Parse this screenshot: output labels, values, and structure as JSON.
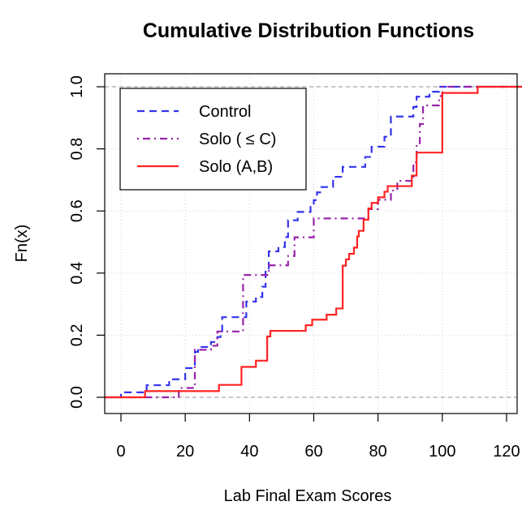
{
  "chart_data": {
    "type": "line",
    "step": true,
    "title": "Cumulative Distribution Functions",
    "xlabel": "Lab Final Exam Scores",
    "ylabel": "Fn(x)",
    "xlim": [
      -5,
      125
    ],
    "ylim": [
      0,
      1
    ],
    "x_ticks": [
      0,
      20,
      40,
      60,
      80,
      100,
      120
    ],
    "y_ticks": [
      0.0,
      0.2,
      0.4,
      0.6,
      0.8,
      1.0
    ],
    "x_tick_labels": [
      "0",
      "20",
      "40",
      "60",
      "80",
      "100",
      "120"
    ],
    "y_tick_labels": [
      "0.0",
      "0.2",
      "0.4",
      "0.6",
      "0.8",
      "1.0"
    ],
    "grid": true,
    "reference_lines": [
      0,
      1
    ],
    "legend_position": "top-left",
    "series": [
      {
        "name": "Control",
        "color": "#3333ee",
        "line_style": "dashed",
        "points": [
          [
            -5,
            0
          ],
          [
            0,
            0.016
          ],
          [
            8,
            0.039
          ],
          [
            15,
            0.058
          ],
          [
            20,
            0.094
          ],
          [
            23,
            0.146
          ],
          [
            24,
            0.162
          ],
          [
            28,
            0.178
          ],
          [
            30,
            0.194
          ],
          [
            31,
            0.213
          ],
          [
            31.5,
            0.258
          ],
          [
            39,
            0.308
          ],
          [
            42,
            0.323
          ],
          [
            44,
            0.356
          ],
          [
            45,
            0.41
          ],
          [
            46,
            0.47
          ],
          [
            49,
            0.484
          ],
          [
            51,
            0.516
          ],
          [
            52,
            0.57
          ],
          [
            55,
            0.597
          ],
          [
            59,
            0.613
          ],
          [
            60,
            0.635
          ],
          [
            61,
            0.66
          ],
          [
            62,
            0.677
          ],
          [
            66,
            0.71
          ],
          [
            69,
            0.742
          ],
          [
            76,
            0.774
          ],
          [
            78,
            0.807
          ],
          [
            82,
            0.839
          ],
          [
            84,
            0.904
          ],
          [
            91,
            0.935
          ],
          [
            92,
            0.968
          ],
          [
            96,
            0.984
          ],
          [
            99,
            1.0
          ],
          [
            125,
            1.0
          ]
        ]
      },
      {
        "name": "Solo ( ≤  C)",
        "color": "#9922aa",
        "line_style": "dotdash",
        "points": [
          [
            -5,
            0
          ],
          [
            18,
            0.03
          ],
          [
            23,
            0.153
          ],
          [
            28,
            0.166
          ],
          [
            30,
            0.212
          ],
          [
            38,
            0.394
          ],
          [
            46,
            0.425
          ],
          [
            52,
            0.455
          ],
          [
            54,
            0.515
          ],
          [
            60,
            0.576
          ],
          [
            77,
            0.606
          ],
          [
            80,
            0.636
          ],
          [
            84,
            0.666
          ],
          [
            86,
            0.697
          ],
          [
            91,
            0.757
          ],
          [
            92,
            0.818
          ],
          [
            93,
            0.88
          ],
          [
            94,
            0.94
          ],
          [
            99,
            0.97
          ],
          [
            100,
            1.0
          ],
          [
            125,
            1.0
          ]
        ]
      },
      {
        "name": "Solo (A,B)",
        "color": "#ff2222",
        "line_style": "solid",
        "points": [
          [
            -5,
            0
          ],
          [
            7.5,
            0.02
          ],
          [
            30.5,
            0.04
          ],
          [
            37.5,
            0.098
          ],
          [
            42,
            0.118
          ],
          [
            45.5,
            0.196
          ],
          [
            46.5,
            0.214
          ],
          [
            57.5,
            0.232
          ],
          [
            59.5,
            0.25
          ],
          [
            64,
            0.266
          ],
          [
            67,
            0.286
          ],
          [
            69,
            0.424
          ],
          [
            70,
            0.444
          ],
          [
            71,
            0.462
          ],
          [
            72.5,
            0.482
          ],
          [
            73.5,
            0.518
          ],
          [
            74,
            0.536
          ],
          [
            75.5,
            0.572
          ],
          [
            77,
            0.608
          ],
          [
            78,
            0.626
          ],
          [
            80,
            0.644
          ],
          [
            82,
            0.662
          ],
          [
            83,
            0.68
          ],
          [
            90.5,
            0.714
          ],
          [
            92,
            0.788
          ],
          [
            100,
            0.98
          ],
          [
            111,
            1.0
          ],
          [
            125,
            1.0
          ]
        ]
      }
    ]
  }
}
